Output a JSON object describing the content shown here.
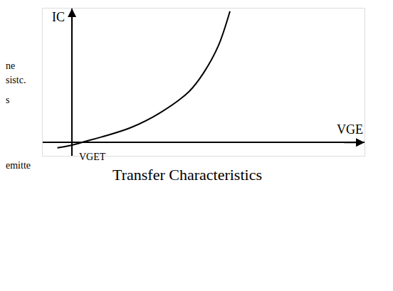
{
  "chart_data": {
    "type": "line",
    "title": "Transfer Characteristics",
    "x_label": "VGE",
    "y_label": "IC",
    "x": [
      -0.5,
      0,
      0.5,
      1,
      2,
      3,
      4,
      4.5,
      5,
      5.4
    ],
    "values": [
      -0.2,
      -0.1,
      0.05,
      0.2,
      0.55,
      1.1,
      1.9,
      2.6,
      3.6,
      4.9
    ],
    "color": "#000000",
    "xlim": [
      -1,
      10
    ],
    "ylim": [
      -0.5,
      5
    ],
    "xticks": [],
    "yticks": [],
    "tick_labels": false,
    "grid": false,
    "annotations": [
      {
        "text": "VGET",
        "x": 0.7,
        "y": -0.3
      }
    ],
    "margin_texts": [
      "ne",
      "sistc.",
      "s",
      "emitte"
    ]
  }
}
